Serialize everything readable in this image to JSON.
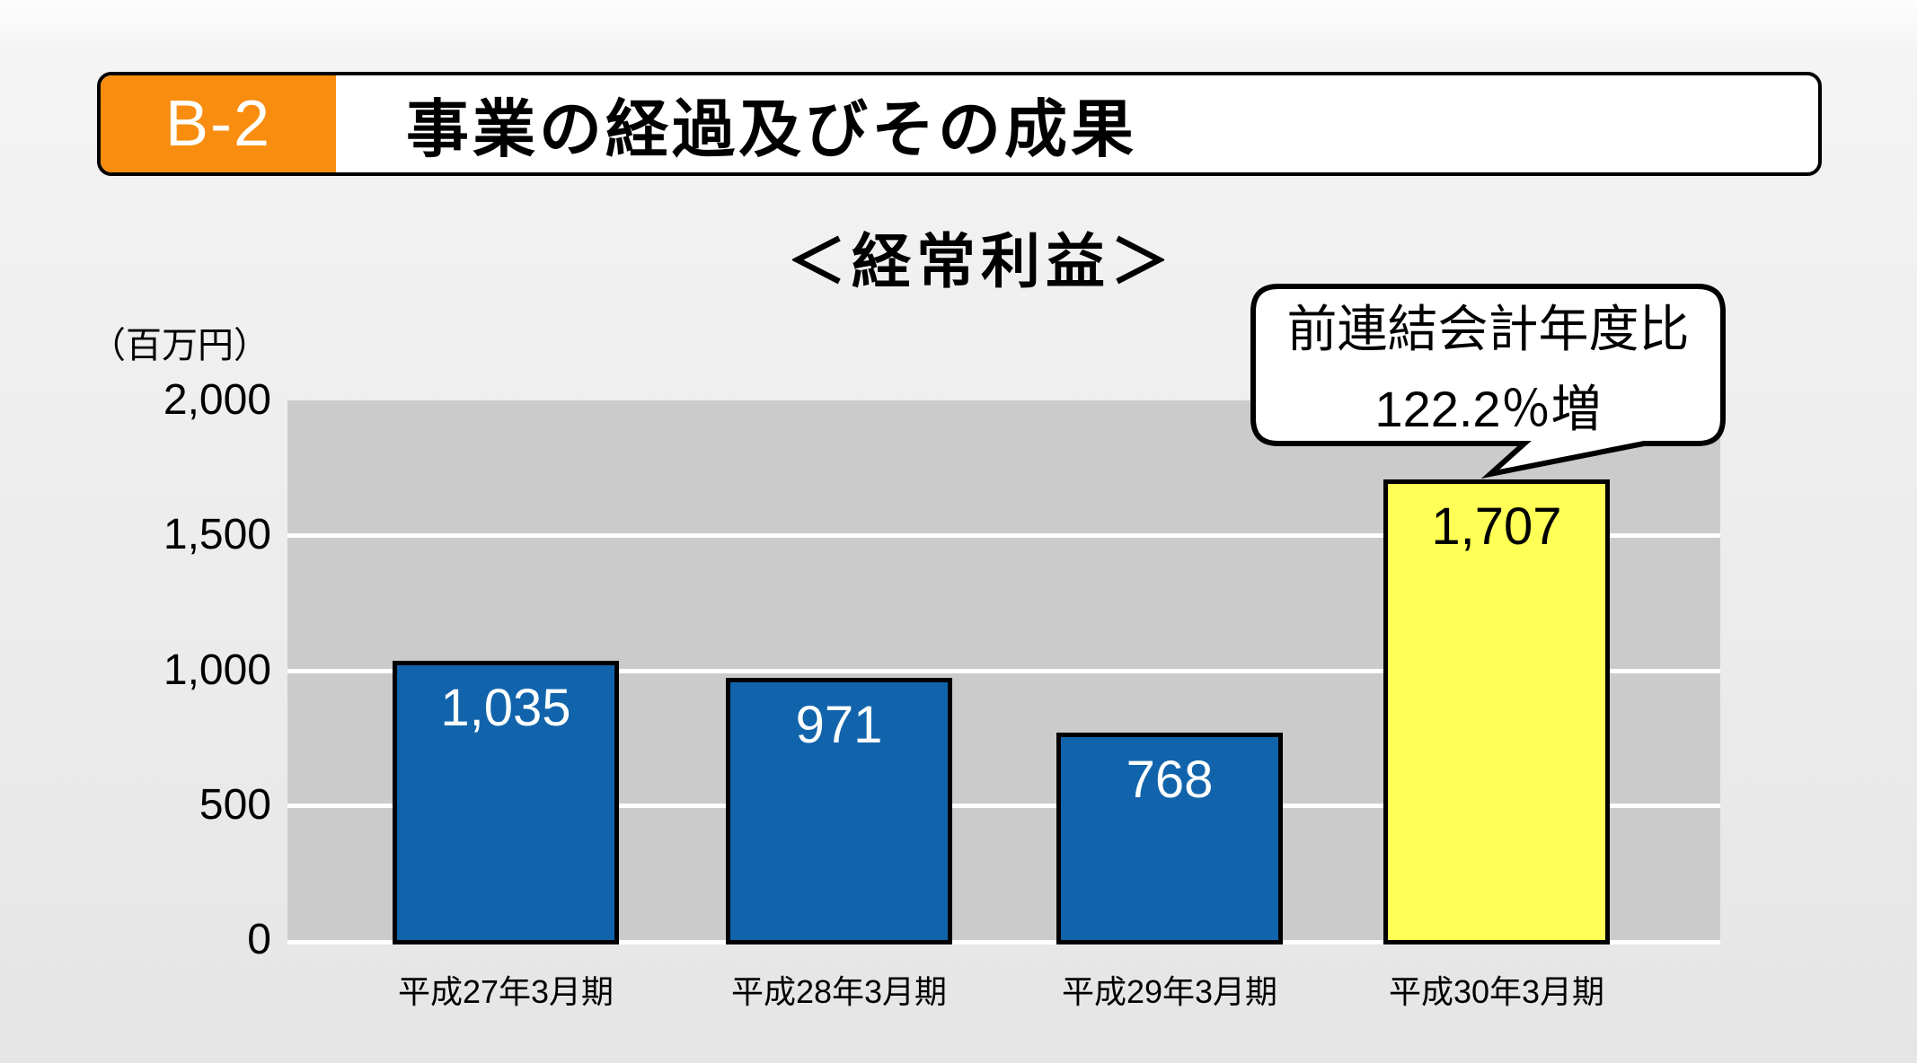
{
  "header": {
    "badge": "B-2",
    "title": "事業の経過及びその成果"
  },
  "chart_data": {
    "type": "bar",
    "title": "＜経常利益＞",
    "unit_label": "（百万円）",
    "categories": [
      "平成27年3月期",
      "平成28年3月期",
      "平成29年3月期",
      "平成30年3月期"
    ],
    "values": [
      1035,
      971,
      768,
      1707
    ],
    "value_labels": [
      "1,035",
      "971",
      "768",
      "1,707"
    ],
    "bar_colors": [
      "#1164AB",
      "#1164AB",
      "#1164AB",
      "#FFFF55"
    ],
    "value_label_colors": [
      "#FFFFFF",
      "#FFFFFF",
      "#FFFFFF",
      "#000000"
    ],
    "ylabel": "",
    "xlabel": "",
    "ylim": [
      0,
      2000
    ],
    "yticks": [
      0,
      500,
      1000,
      1500,
      2000
    ],
    "ytick_labels": [
      "0",
      "500",
      "1,000",
      "1,500",
      "2,000"
    ],
    "grid": true,
    "plot_bg": "#CBCBCB",
    "annotation": {
      "lines": [
        "前連結会計年度比",
        "122.2％増"
      ],
      "target_category": "平成30年3月期"
    }
  },
  "colors": {
    "accent_orange": "#F98D10",
    "bar_blue": "#1164AB",
    "bar_highlight_yellow": "#FFFF55",
    "plot_bg_gray": "#CBCBCB"
  }
}
